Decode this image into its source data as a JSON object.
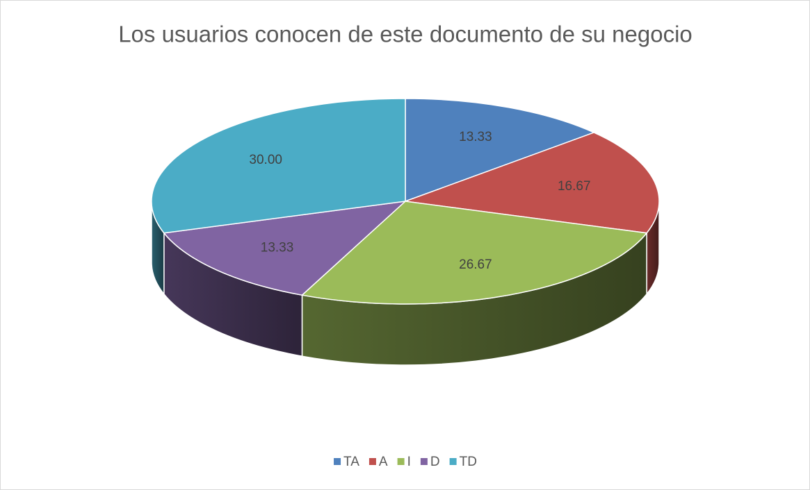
{
  "chart_data": {
    "type": "pie",
    "title": "Los usuarios conocen de este documento de su negocio",
    "categories": [
      "TA",
      "A",
      "I",
      "D",
      "TD"
    ],
    "values": [
      13.33,
      16.67,
      26.67,
      13.33,
      30.0
    ],
    "value_labels": [
      "13.33",
      "16.67",
      "26.67",
      "13.33",
      "30.00"
    ],
    "colors": [
      "#4f81bd",
      "#c0504d",
      "#9bbb59",
      "#8064a2",
      "#4bacc6"
    ],
    "legend": "bottom"
  }
}
